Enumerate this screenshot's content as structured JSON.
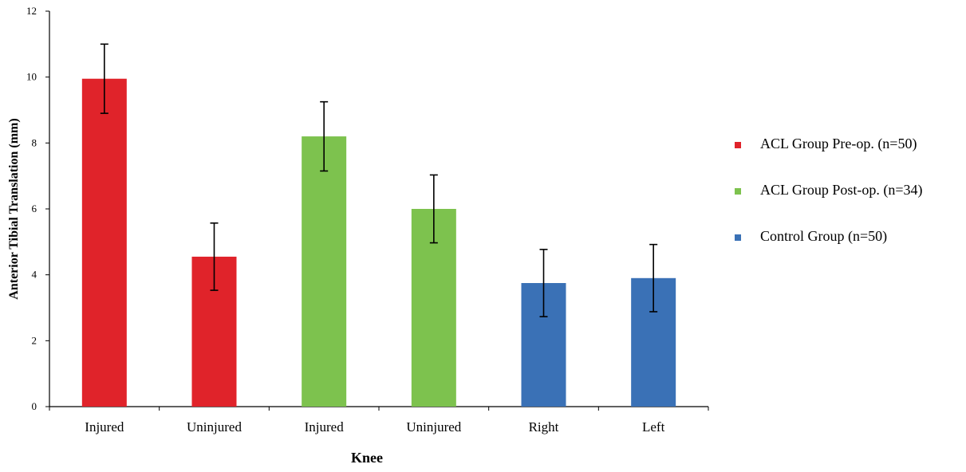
{
  "chart_data": {
    "type": "bar",
    "title": "",
    "xlabel": "Knee",
    "ylabel": "Anterior Tibial Translation (mm)",
    "ylim": [
      0,
      12
    ],
    "yticks": [
      0,
      2,
      4,
      6,
      8,
      10,
      12
    ],
    "grid": false,
    "legend_position": "right",
    "categories": [
      "Injured",
      "Uninjured",
      "Injured",
      "Uninjured",
      "Right",
      "Left"
    ],
    "values": [
      9.95,
      4.55,
      8.2,
      6.0,
      3.75,
      3.9
    ],
    "error": [
      1.05,
      1.02,
      1.05,
      1.03,
      1.02,
      1.02
    ],
    "bar_series": [
      0,
      0,
      1,
      1,
      2,
      2
    ],
    "series": [
      {
        "name": "ACL Group Pre-op. (n=50)",
        "color": "#e0232a"
      },
      {
        "name": "ACL Group Post-op. (n=34)",
        "color": "#7dc24e"
      },
      {
        "name": "Control Group (n=50)",
        "color": "#3a71b6"
      }
    ]
  }
}
